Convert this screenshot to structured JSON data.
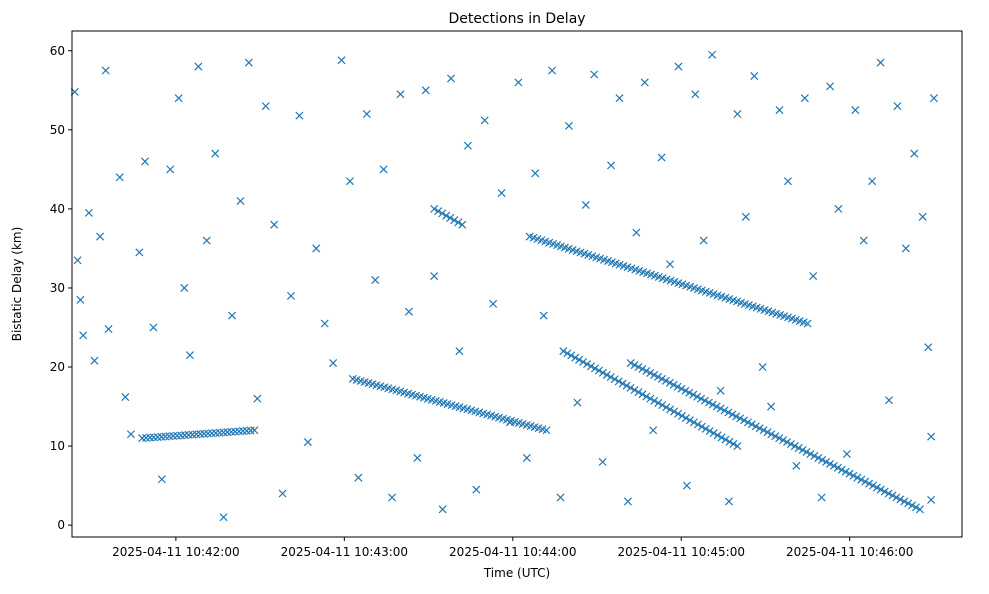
{
  "chart_data": {
    "type": "scatter",
    "title": "Detections in Delay",
    "xlabel": "Time (UTC)",
    "ylabel": "Bistatic Delay (km)",
    "x_ticks": [
      "2025-04-11 10:42:00",
      "2025-04-11 10:43:00",
      "2025-04-11 10:44:00",
      "2025-04-11 10:45:00",
      "2025-04-11 10:46:00"
    ],
    "y_ticks": [
      "0",
      "10",
      "20",
      "30",
      "40",
      "50",
      "60"
    ],
    "xlim": [
      "2025-04-11 10:41:23",
      "2025-04-11 10:46:40"
    ],
    "ylim": [
      -1.5,
      62.5
    ],
    "grid": false,
    "marker": "x",
    "marker_color": "#1f77b4",
    "tracks": [
      {
        "x": [
          "2025-04-11 10:41:48",
          "2025-04-11 10:42:28"
        ],
        "y": [
          11.0,
          12.0
        ]
      },
      {
        "x": [
          "2025-04-11 10:43:03",
          "2025-04-11 10:44:12"
        ],
        "y": [
          18.5,
          12.0
        ]
      },
      {
        "x": [
          "2025-04-11 10:44:18",
          "2025-04-11 10:45:20"
        ],
        "y": [
          22.0,
          10.0
        ]
      },
      {
        "x": [
          "2025-04-11 10:44:42",
          "2025-04-11 10:46:25"
        ],
        "y": [
          20.5,
          2.0
        ]
      },
      {
        "x": [
          "2025-04-11 10:43:32",
          "2025-04-11 10:43:42"
        ],
        "y": [
          40.0,
          38.0
        ]
      },
      {
        "x": [
          "2025-04-11 10:44:06",
          "2025-04-11 10:45:45"
        ],
        "y": [
          36.5,
          25.5
        ]
      }
    ],
    "clutter": [
      [
        "2025-04-11 10:41:24",
        54.8
      ],
      [
        "2025-04-11 10:41:25",
        33.5
      ],
      [
        "2025-04-11 10:41:26",
        28.5
      ],
      [
        "2025-04-11 10:41:27",
        24.0
      ],
      [
        "2025-04-11 10:41:29",
        39.5
      ],
      [
        "2025-04-11 10:41:31",
        20.8
      ],
      [
        "2025-04-11 10:41:33",
        36.5
      ],
      [
        "2025-04-11 10:41:35",
        57.5
      ],
      [
        "2025-04-11 10:41:36",
        24.8
      ],
      [
        "2025-04-11 10:41:40",
        44.0
      ],
      [
        "2025-04-11 10:41:42",
        16.2
      ],
      [
        "2025-04-11 10:41:44",
        11.5
      ],
      [
        "2025-04-11 10:41:47",
        34.5
      ],
      [
        "2025-04-11 10:41:49",
        46.0
      ],
      [
        "2025-04-11 10:41:52",
        25.0
      ],
      [
        "2025-04-11 10:41:55",
        5.8
      ],
      [
        "2025-04-11 10:41:58",
        45.0
      ],
      [
        "2025-04-11 10:42:01",
        54.0
      ],
      [
        "2025-04-11 10:42:03",
        30.0
      ],
      [
        "2025-04-11 10:42:05",
        21.5
      ],
      [
        "2025-04-11 10:42:08",
        58.0
      ],
      [
        "2025-04-11 10:42:11",
        36.0
      ],
      [
        "2025-04-11 10:42:14",
        47.0
      ],
      [
        "2025-04-11 10:42:17",
        1.0
      ],
      [
        "2025-04-11 10:42:20",
        26.5
      ],
      [
        "2025-04-11 10:42:23",
        41.0
      ],
      [
        "2025-04-11 10:42:26",
        58.5
      ],
      [
        "2025-04-11 10:42:29",
        16.0
      ],
      [
        "2025-04-11 10:42:32",
        53.0
      ],
      [
        "2025-04-11 10:42:35",
        38.0
      ],
      [
        "2025-04-11 10:42:38",
        4.0
      ],
      [
        "2025-04-11 10:42:41",
        29.0
      ],
      [
        "2025-04-11 10:42:44",
        51.8
      ],
      [
        "2025-04-11 10:42:47",
        10.5
      ],
      [
        "2025-04-11 10:42:50",
        35.0
      ],
      [
        "2025-04-11 10:42:53",
        25.5
      ],
      [
        "2025-04-11 10:42:56",
        20.5
      ],
      [
        "2025-04-11 10:42:59",
        58.8
      ],
      [
        "2025-04-11 10:43:02",
        43.5
      ],
      [
        "2025-04-11 10:43:05",
        6.0
      ],
      [
        "2025-04-11 10:43:08",
        52.0
      ],
      [
        "2025-04-11 10:43:11",
        31.0
      ],
      [
        "2025-04-11 10:43:14",
        45.0
      ],
      [
        "2025-04-11 10:43:17",
        3.5
      ],
      [
        "2025-04-11 10:43:20",
        54.5
      ],
      [
        "2025-04-11 10:43:23",
        27.0
      ],
      [
        "2025-04-11 10:43:26",
        8.5
      ],
      [
        "2025-04-11 10:43:29",
        55.0
      ],
      [
        "2025-04-11 10:43:32",
        31.5
      ],
      [
        "2025-04-11 10:43:35",
        2.0
      ],
      [
        "2025-04-11 10:43:38",
        56.5
      ],
      [
        "2025-04-11 10:43:41",
        22.0
      ],
      [
        "2025-04-11 10:43:44",
        48.0
      ],
      [
        "2025-04-11 10:43:47",
        4.5
      ],
      [
        "2025-04-11 10:43:50",
        51.2
      ],
      [
        "2025-04-11 10:43:53",
        28.0
      ],
      [
        "2025-04-11 10:43:56",
        42.0
      ],
      [
        "2025-04-11 10:43:59",
        13.0
      ],
      [
        "2025-04-11 10:44:02",
        56.0
      ],
      [
        "2025-04-11 10:44:05",
        8.5
      ],
      [
        "2025-04-11 10:44:08",
        44.5
      ],
      [
        "2025-04-11 10:44:11",
        26.5
      ],
      [
        "2025-04-11 10:44:14",
        57.5
      ],
      [
        "2025-04-11 10:44:17",
        3.5
      ],
      [
        "2025-04-11 10:44:20",
        50.5
      ],
      [
        "2025-04-11 10:44:23",
        15.5
      ],
      [
        "2025-04-11 10:44:26",
        40.5
      ],
      [
        "2025-04-11 10:44:29",
        57.0
      ],
      [
        "2025-04-11 10:44:32",
        8.0
      ],
      [
        "2025-04-11 10:44:35",
        45.5
      ],
      [
        "2025-04-11 10:44:38",
        54.0
      ],
      [
        "2025-04-11 10:44:41",
        3.0
      ],
      [
        "2025-04-11 10:44:44",
        37.0
      ],
      [
        "2025-04-11 10:44:47",
        56.0
      ],
      [
        "2025-04-11 10:44:50",
        12.0
      ],
      [
        "2025-04-11 10:44:53",
        46.5
      ],
      [
        "2025-04-11 10:44:56",
        33.0
      ],
      [
        "2025-04-11 10:44:59",
        58.0
      ],
      [
        "2025-04-11 10:45:02",
        5.0
      ],
      [
        "2025-04-11 10:45:05",
        54.5
      ],
      [
        "2025-04-11 10:45:08",
        36.0
      ],
      [
        "2025-04-11 10:45:11",
        59.5
      ],
      [
        "2025-04-11 10:45:14",
        17.0
      ],
      [
        "2025-04-11 10:45:17",
        3.0
      ],
      [
        "2025-04-11 10:45:20",
        52.0
      ],
      [
        "2025-04-11 10:45:23",
        39.0
      ],
      [
        "2025-04-11 10:45:26",
        56.8
      ],
      [
        "2025-04-11 10:45:29",
        20.0
      ],
      [
        "2025-04-11 10:45:32",
        15.0
      ],
      [
        "2025-04-11 10:45:35",
        52.5
      ],
      [
        "2025-04-11 10:45:38",
        43.5
      ],
      [
        "2025-04-11 10:45:41",
        7.5
      ],
      [
        "2025-04-11 10:45:44",
        54.0
      ],
      [
        "2025-04-11 10:45:47",
        31.5
      ],
      [
        "2025-04-11 10:45:50",
        3.5
      ],
      [
        "2025-04-11 10:45:53",
        55.5
      ],
      [
        "2025-04-11 10:45:56",
        40.0
      ],
      [
        "2025-04-11 10:45:59",
        9.0
      ],
      [
        "2025-04-11 10:46:02",
        52.5
      ],
      [
        "2025-04-11 10:46:05",
        36.0
      ],
      [
        "2025-04-11 10:46:08",
        43.5
      ],
      [
        "2025-04-11 10:46:11",
        58.5
      ],
      [
        "2025-04-11 10:46:14",
        15.8
      ],
      [
        "2025-04-11 10:46:17",
        53.0
      ],
      [
        "2025-04-11 10:46:20",
        35.0
      ],
      [
        "2025-04-11 10:46:23",
        47.0
      ],
      [
        "2025-04-11 10:46:26",
        39.0
      ],
      [
        "2025-04-11 10:46:28",
        22.5
      ],
      [
        "2025-04-11 10:46:29",
        3.2
      ],
      [
        "2025-04-11 10:46:29",
        11.2
      ],
      [
        "2025-04-11 10:46:30",
        54.0
      ]
    ]
  }
}
